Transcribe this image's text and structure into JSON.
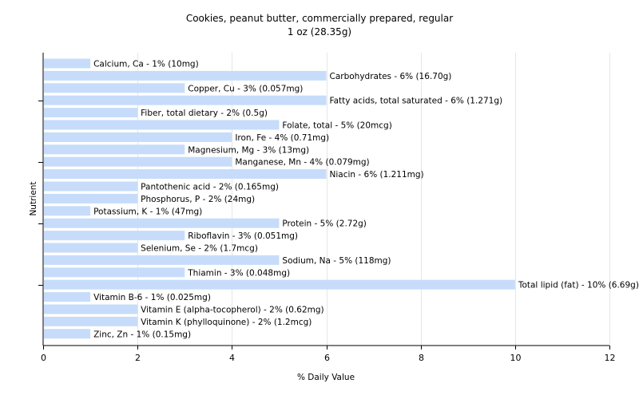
{
  "chart_data": {
    "type": "bar",
    "orientation": "horizontal",
    "title": "Cookies, peanut butter, commercially prepared, regular",
    "subtitle": "1 oz (28.35g)",
    "xlabel": "% Daily Value",
    "ylabel": "Nutrient",
    "xlim": [
      0,
      12
    ],
    "xticks": [
      0,
      2,
      4,
      6,
      8,
      10,
      12
    ],
    "grid": true,
    "bar_color": "#c6dcfa",
    "categories": [
      "Calcium, Ca",
      "Carbohydrates",
      "Copper, Cu",
      "Fatty acids, total saturated",
      "Fiber, total dietary",
      "Folate, total",
      "Iron, Fe",
      "Magnesium, Mg",
      "Manganese, Mn",
      "Niacin",
      "Pantothenic acid",
      "Phosphorus, P",
      "Potassium, K",
      "Protein",
      "Riboflavin",
      "Selenium, Se",
      "Sodium, Na",
      "Thiamin",
      "Total lipid (fat)",
      "Vitamin B-6",
      "Vitamin E (alpha-tocopherol)",
      "Vitamin K (phylloquinone)",
      "Zinc, Zn"
    ],
    "values": [
      1,
      6,
      3,
      6,
      2,
      5,
      4,
      3,
      4,
      6,
      2,
      2,
      1,
      5,
      3,
      2,
      5,
      3,
      10,
      1,
      2,
      2,
      1
    ],
    "labels": [
      "Calcium, Ca - 1% (10mg)",
      "Carbohydrates - 6% (16.70g)",
      "Copper, Cu - 3% (0.057mg)",
      "Fatty acids, total saturated - 6% (1.271g)",
      "Fiber, total dietary - 2% (0.5g)",
      "Folate, total - 5% (20mcg)",
      "Iron, Fe - 4% (0.71mg)",
      "Magnesium, Mg - 3% (13mg)",
      "Manganese, Mn - 4% (0.079mg)",
      "Niacin - 6% (1.211mg)",
      "Pantothenic acid - 2% (0.165mg)",
      "Phosphorus, P - 2% (24mg)",
      "Potassium, K - 1% (47mg)",
      "Protein - 5% (2.72g)",
      "Riboflavin - 3% (0.051mg)",
      "Selenium, Se - 2% (1.7mcg)",
      "Sodium, Na - 5% (118mg)",
      "Thiamin - 3% (0.048mg)",
      "Total lipid (fat) - 10% (6.69g)",
      "Vitamin B-6 - 1% (0.025mg)",
      "Vitamin E (alpha-tocopherol) - 2% (0.62mg)",
      "Vitamin K (phylloquinone) - 2% (1.2mcg)",
      "Zinc, Zn - 1% (0.15mg)"
    ]
  }
}
